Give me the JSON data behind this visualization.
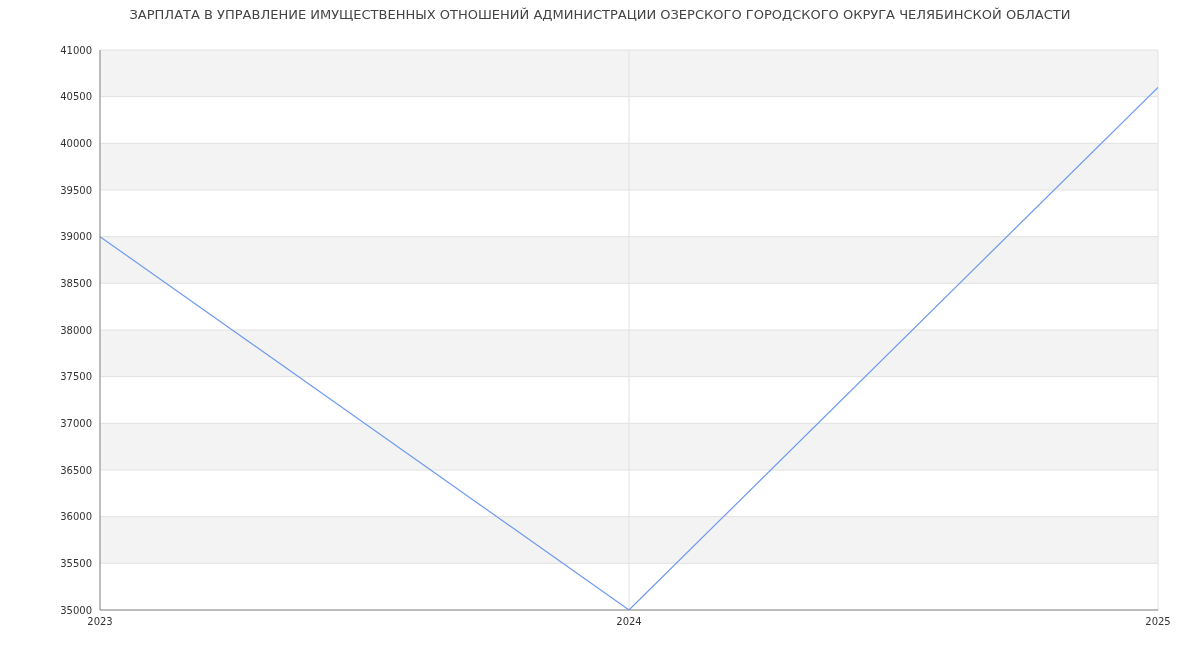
{
  "chart_data": {
    "type": "line",
    "title": "ЗАРПЛАТА В УПРАВЛЕНИЕ ИМУЩЕСТВЕННЫХ ОТНОШЕНИЙ АДМИНИСТРАЦИИ ОЗЕРСКОГО ГОРОДСКОГО ОКРУГА ЧЕЛЯБИНСКОЙ ОБЛАСТИ",
    "x": [
      2023,
      2024,
      2025
    ],
    "series": [
      {
        "color": "#6f9af0",
        "values": [
          39000,
          35000,
          40600
        ]
      }
    ],
    "xlim": [
      2023,
      2025
    ],
    "xticks": [
      2023,
      2024,
      2025
    ],
    "ylim": [
      35000,
      41000
    ],
    "yticks": [
      35000,
      35500,
      36000,
      36500,
      37000,
      37500,
      38000,
      38500,
      39000,
      39500,
      40000,
      40500,
      41000
    ],
    "grid": true,
    "legend": false,
    "marker": "none",
    "line_style": "solid"
  }
}
